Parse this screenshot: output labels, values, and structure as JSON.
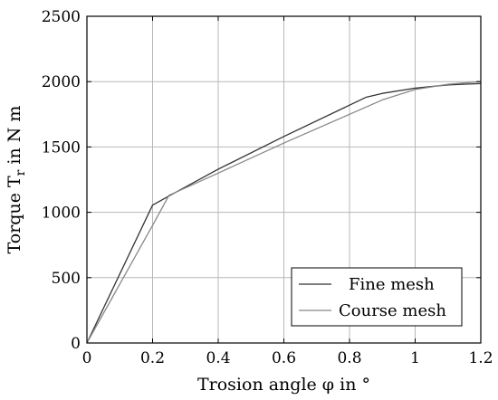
{
  "chart_data": {
    "type": "line",
    "title": "",
    "xlabel": "Trosion angle φ in °",
    "ylabel": "Torque T",
    "ylabel_subscript": "r",
    "ylabel_suffix": " in N m",
    "xlim": [
      0,
      1.2
    ],
    "ylim": [
      0,
      2500
    ],
    "xticks": [
      "0",
      "0.2",
      "0.4",
      "0.6",
      "0.8",
      "1",
      "1.2"
    ],
    "yticks": [
      "0",
      "500",
      "1000",
      "1500",
      "2000",
      "2500"
    ],
    "grid": true,
    "legend_position": "bottom-right",
    "series": [
      {
        "name": "Fine mesh",
        "color": "#333333",
        "x": [
          0,
          0.2,
          0.25,
          0.4,
          0.6,
          0.8,
          0.85,
          0.9,
          1.0,
          1.1,
          1.2
        ],
        "y": [
          0,
          1055,
          1125,
          1330,
          1580,
          1820,
          1880,
          1910,
          1950,
          1975,
          1985
        ]
      },
      {
        "name": "Course mesh",
        "color": "#888888",
        "x": [
          0,
          0.2,
          0.25,
          0.4,
          0.6,
          0.8,
          0.9,
          1.0,
          1.1,
          1.2
        ],
        "y": [
          0,
          900,
          1130,
          1300,
          1530,
          1750,
          1860,
          1940,
          1980,
          2000
        ]
      }
    ]
  }
}
